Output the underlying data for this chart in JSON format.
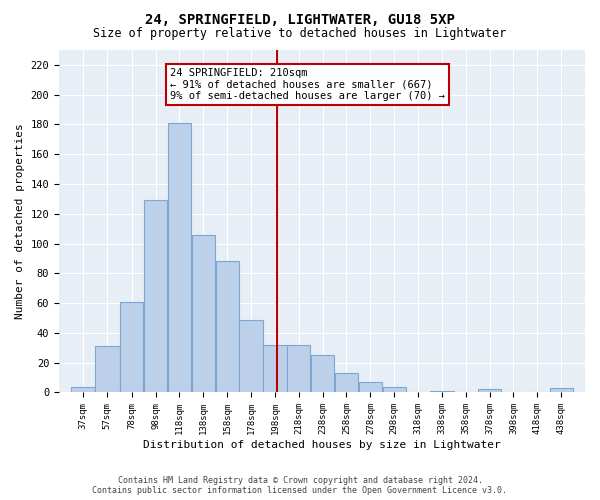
{
  "title": "24, SPRINGFIELD, LIGHTWATER, GU18 5XP",
  "subtitle": "Size of property relative to detached houses in Lightwater",
  "xlabel": "Distribution of detached houses by size in Lightwater",
  "ylabel": "Number of detached properties",
  "bar_color": "#BDD0E9",
  "bar_edge_color": "#7AA8D2",
  "background_color": "#E8EEF6",
  "vline_x": 210,
  "vline_color": "#BB0000",
  "annotation_text": "24 SPRINGFIELD: 210sqm\n← 91% of detached houses are smaller (667)\n9% of semi-detached houses are larger (70) →",
  "annotation_box_color": "#BB0000",
  "bin_edges": [
    37,
    57,
    78,
    98,
    118,
    138,
    158,
    178,
    198,
    218,
    238,
    258,
    278,
    298,
    318,
    338,
    358,
    378,
    398,
    418,
    438,
    458
  ],
  "bar_heights": [
    4,
    31,
    61,
    129,
    181,
    106,
    88,
    49,
    32,
    32,
    25,
    13,
    7,
    4,
    0,
    1,
    0,
    2,
    0,
    0,
    3
  ],
  "ylim": [
    0,
    230
  ],
  "yticks": [
    0,
    20,
    40,
    60,
    80,
    100,
    120,
    140,
    160,
    180,
    200,
    220
  ],
  "footer_line1": "Contains HM Land Registry data © Crown copyright and database right 2024.",
  "footer_line2": "Contains public sector information licensed under the Open Government Licence v3.0."
}
